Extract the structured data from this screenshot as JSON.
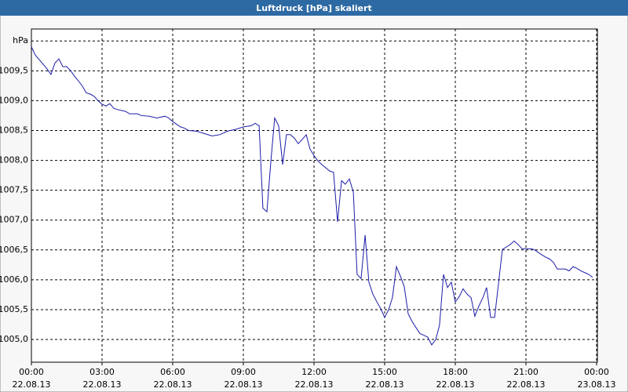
{
  "chart_data": {
    "type": "line",
    "title": "Luftdruck [hPa] skaliert",
    "title_color": "#2d6aa3",
    "xlim": [
      0,
      24
    ],
    "ylim": [
      1004.62,
      1010.2
    ],
    "grid": true,
    "xticks": [
      {
        "value": 0,
        "label": "00:00",
        "date": "22.08.13"
      },
      {
        "value": 3,
        "label": "03:00",
        "date": "22.08.13"
      },
      {
        "value": 6,
        "label": "06:00",
        "date": "22.08.13"
      },
      {
        "value": 9,
        "label": "09:00",
        "date": "22.08.13"
      },
      {
        "value": 12,
        "label": "12:00",
        "date": "22.08.13"
      },
      {
        "value": 15,
        "label": "15:00",
        "date": "22.08.13"
      },
      {
        "value": 18,
        "label": "18:00",
        "date": "22.08.13"
      },
      {
        "value": 21,
        "label": "21:00",
        "date": "22.08.13"
      },
      {
        "value": 24,
        "label": "00:00",
        "date": "23.08.13"
      }
    ],
    "yticks": [
      {
        "value": 1005,
        "label": "1005,0"
      },
      {
        "value": 1005.5,
        "label": "1005,5"
      },
      {
        "value": 1006,
        "label": "1006,0"
      },
      {
        "value": 1006.5,
        "label": "1006,5"
      },
      {
        "value": 1007,
        "label": "1007,0"
      },
      {
        "value": 1007.5,
        "label": "1007,5"
      },
      {
        "value": 1008,
        "label": "1008,0"
      },
      {
        "value": 1008.5,
        "label": "1008,5"
      },
      {
        "value": 1009,
        "label": "1009,0"
      },
      {
        "value": 1009.5,
        "label": "1009,5"
      },
      {
        "value": 1010,
        "label": "hPa"
      }
    ],
    "series": [
      {
        "name": "Luftdruck",
        "color": "#1c1ca8",
        "x": [
          0,
          0.17,
          0.5,
          0.67,
          0.83,
          1,
          1.17,
          1.33,
          1.5,
          1.67,
          1.83,
          2,
          2.17,
          2.33,
          2.5,
          2.67,
          2.83,
          3,
          3.17,
          3.33,
          3.5,
          3.67,
          4,
          4.17,
          4.5,
          4.67,
          5,
          5.33,
          5.67,
          5.83,
          6,
          6.33,
          6.5,
          6.67,
          7,
          7.33,
          7.67,
          8,
          8.33,
          8.67,
          9,
          9.33,
          9.5,
          9.67,
          9.83,
          10,
          10.17,
          10.33,
          10.5,
          10.67,
          10.83,
          11,
          11.17,
          11.33,
          11.5,
          11.67,
          11.83,
          12,
          12.17,
          12.33,
          12.67,
          12.83,
          13,
          13.17,
          13.33,
          13.5,
          13.67,
          13.83,
          14,
          14.17,
          14.33,
          14.5,
          14.67,
          14.83,
          15,
          15.17,
          15.33,
          15.5,
          15.67,
          15.83,
          16,
          16.17,
          16.33,
          16.5,
          16.67,
          16.83,
          17,
          17.17,
          17.33,
          17.5,
          17.67,
          17.83,
          18,
          18.17,
          18.33,
          18.5,
          18.67,
          18.83,
          19,
          19.17,
          19.33,
          19.5,
          19.67,
          20,
          20.17,
          20.33,
          20.5,
          20.67,
          20.83,
          21.17,
          21.33,
          21.67,
          21.83,
          22,
          22.17,
          22.33,
          22.67,
          22.83,
          23,
          23.17,
          23.33,
          23.5,
          23.67,
          23.83
        ],
        "values": [
          1009.9,
          1009.76,
          1009.61,
          1009.53,
          1009.44,
          1009.63,
          1009.7,
          1009.57,
          1009.57,
          1009.5,
          1009.41,
          1009.33,
          1009.24,
          1009.13,
          1009.11,
          1009.07,
          1009.0,
          1008.94,
          1008.91,
          1008.95,
          1008.87,
          1008.85,
          1008.82,
          1008.78,
          1008.78,
          1008.75,
          1008.74,
          1008.71,
          1008.74,
          1008.71,
          1008.65,
          1008.56,
          1008.54,
          1008.5,
          1008.49,
          1008.45,
          1008.41,
          1008.43,
          1008.49,
          1008.52,
          1008.56,
          1008.58,
          1008.62,
          1008.58,
          1007.2,
          1007.14,
          1007.99,
          1008.71,
          1008.58,
          1007.93,
          1008.43,
          1008.43,
          1008.37,
          1008.28,
          1008.35,
          1008.43,
          1008.19,
          1008.08,
          1007.99,
          1007.93,
          1007.82,
          1007.8,
          1006.97,
          1007.66,
          1007.6,
          1007.69,
          1007.47,
          1006.09,
          1006.02,
          1006.75,
          1005.96,
          1005.76,
          1005.63,
          1005.52,
          1005.37,
          1005.5,
          1005.7,
          1006.22,
          1006.06,
          1005.89,
          1005.43,
          1005.3,
          1005.2,
          1005.1,
          1005.07,
          1005.04,
          1004.91,
          1005.0,
          1005.24,
          1006.09,
          1005.87,
          1005.96,
          1005.63,
          1005.72,
          1005.85,
          1005.76,
          1005.7,
          1005.39,
          1005.56,
          1005.7,
          1005.87,
          1005.37,
          1005.37,
          1006.51,
          1006.55,
          1006.59,
          1006.65,
          1006.59,
          1006.52,
          1006.52,
          1006.51,
          1006.42,
          1006.38,
          1006.35,
          1006.29,
          1006.18,
          1006.18,
          1006.15,
          1006.22,
          1006.19,
          1006.15,
          1006.12,
          1006.09,
          1006.04
        ]
      }
    ]
  }
}
